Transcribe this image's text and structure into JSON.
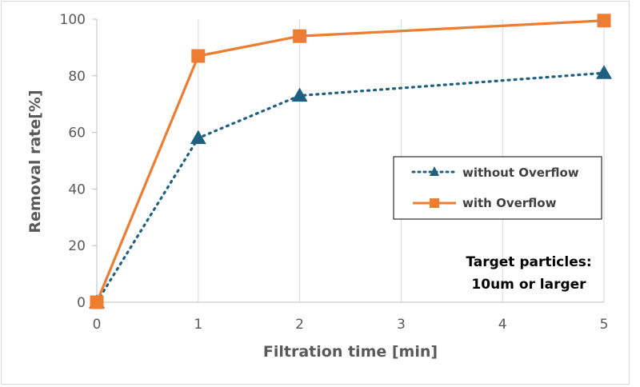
{
  "chart_data": {
    "type": "line",
    "xlabel": "Filtration time [min]",
    "ylabel": "Removal rate[%]",
    "x": [
      0,
      1,
      2,
      5
    ],
    "xlim": [
      0,
      5
    ],
    "ylim": [
      0,
      100
    ],
    "x_ticks": [
      "0",
      "1",
      "2",
      "3",
      "4",
      "5"
    ],
    "y_ticks": [
      "0",
      "20",
      "40",
      "60",
      "80",
      "100"
    ],
    "grid": "vertical",
    "legend_placement": "right",
    "series": [
      {
        "name": "without Overflow",
        "values": [
          0,
          58,
          73,
          81
        ],
        "color": "#1f5f7f",
        "line_style": "dotted",
        "marker": "triangle"
      },
      {
        "name": "with Overflow",
        "values": [
          0,
          87,
          94,
          99.5
        ],
        "color": "#ed7d31",
        "line_style": "solid",
        "marker": "square"
      }
    ],
    "annotation": [
      "Target particles:",
      "10um or larger"
    ]
  }
}
